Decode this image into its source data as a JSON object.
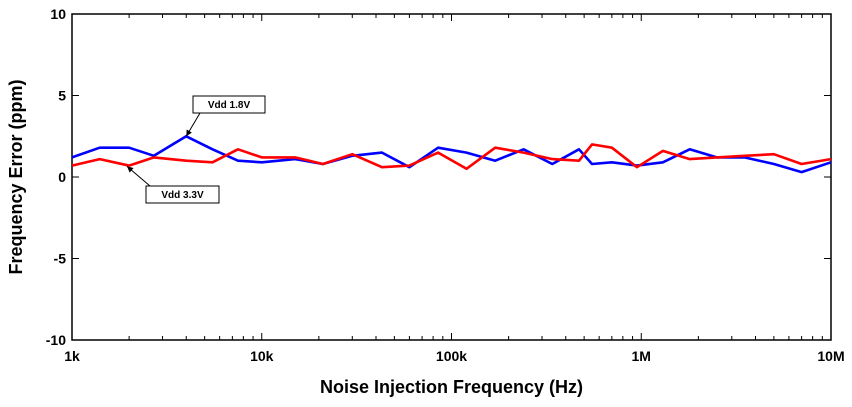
{
  "chart_data": {
    "type": "line",
    "xlabel": "Noise Injection Frequency (Hz)",
    "ylabel": "Frequency Error (ppm)",
    "xscale": "log",
    "xlim": [
      1000,
      10000000
    ],
    "ylim": [
      -10,
      10
    ],
    "x_ticks": [
      {
        "value": 1000,
        "label": "1k"
      },
      {
        "value": 10000,
        "label": "10k"
      },
      {
        "value": 100000,
        "label": "100k"
      },
      {
        "value": 1000000,
        "label": "1M"
      },
      {
        "value": 10000000,
        "label": "10M"
      }
    ],
    "y_ticks": [
      {
        "value": 10,
        "label": "10"
      },
      {
        "value": 5,
        "label": "5"
      },
      {
        "value": 0,
        "label": "0"
      },
      {
        "value": -5,
        "label": "-5"
      },
      {
        "value": -10,
        "label": "-10"
      }
    ],
    "grid": false,
    "series": [
      {
        "name": "Vdd 1.8V",
        "color": "#0000ff",
        "x": [
          1000,
          1400,
          2000,
          2700,
          4000,
          5500,
          7500,
          10000,
          15000,
          21000,
          30000,
          43000,
          60000,
          85000,
          120000,
          170000,
          240000,
          340000,
          470000,
          550000,
          700000,
          950000,
          1300000,
          1800000,
          2500000,
          3500000,
          5000000,
          7000000,
          10000000
        ],
        "values": [
          1.2,
          1.8,
          1.8,
          1.3,
          2.5,
          1.7,
          1.0,
          0.9,
          1.1,
          0.8,
          1.3,
          1.5,
          0.6,
          1.8,
          1.5,
          1.0,
          1.7,
          0.8,
          1.7,
          0.8,
          0.9,
          0.7,
          0.9,
          1.7,
          1.2,
          1.2,
          0.8,
          0.3,
          0.9
        ]
      },
      {
        "name": "Vdd 3.3V",
        "color": "#ff0000",
        "x": [
          1000,
          1400,
          2000,
          2700,
          4000,
          5500,
          7500,
          10000,
          15000,
          21000,
          30000,
          43000,
          60000,
          85000,
          120000,
          170000,
          240000,
          340000,
          470000,
          550000,
          700000,
          950000,
          1300000,
          1800000,
          2500000,
          3500000,
          5000000,
          7000000,
          10000000
        ],
        "values": [
          0.7,
          1.1,
          0.7,
          1.2,
          1.0,
          0.9,
          1.7,
          1.2,
          1.2,
          0.8,
          1.4,
          0.6,
          0.7,
          1.5,
          0.5,
          1.8,
          1.5,
          1.1,
          1.0,
          2.0,
          1.8,
          0.6,
          1.6,
          1.1,
          1.2,
          1.3,
          1.4,
          0.8,
          1.1
        ]
      }
    ],
    "annotations": [
      {
        "text": "Vdd 1.8V",
        "series": "Vdd 1.8V",
        "x": 4000,
        "y": 2.5
      },
      {
        "text": "Vdd 3.3V",
        "series": "Vdd 3.3V",
        "x": 1950,
        "y": 0.65
      }
    ]
  }
}
